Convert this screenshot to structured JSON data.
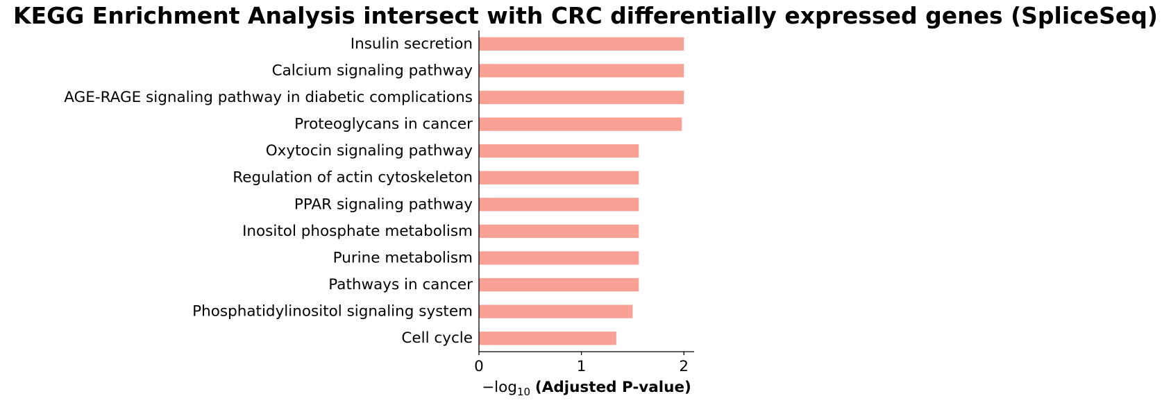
{
  "chart_data": {
    "type": "bar",
    "orientation": "horizontal",
    "title": "KEGG Enrichment Analysis intersect with CRC differentially expressed genes (SpliceSeq)",
    "xlabel": {
      "prefix": "−log",
      "subscript": "10",
      "main": "(Adjusted P-value)"
    },
    "ylabel": "",
    "xlim": [
      0,
      2.1
    ],
    "xticks": [
      0,
      1,
      2
    ],
    "xtick_labels": [
      "0",
      "1",
      "2"
    ],
    "grid": false,
    "bar_color": "#FAA195",
    "categories": [
      "Insulin secretion",
      "Calcium signaling pathway",
      "AGE-RAGE signaling pathway in diabetic complications",
      "Proteoglycans in cancer",
      "Oxytocin signaling pathway",
      "Regulation of actin cytoskeleton",
      "PPAR signaling pathway",
      "Inositol phosphate metabolism",
      "Purine metabolism",
      "Pathways in cancer",
      "Phosphatidylinositol signaling system",
      "Cell cycle"
    ],
    "values": [
      2.0,
      2.0,
      2.0,
      1.98,
      1.56,
      1.56,
      1.56,
      1.56,
      1.56,
      1.56,
      1.5,
      1.34
    ]
  }
}
